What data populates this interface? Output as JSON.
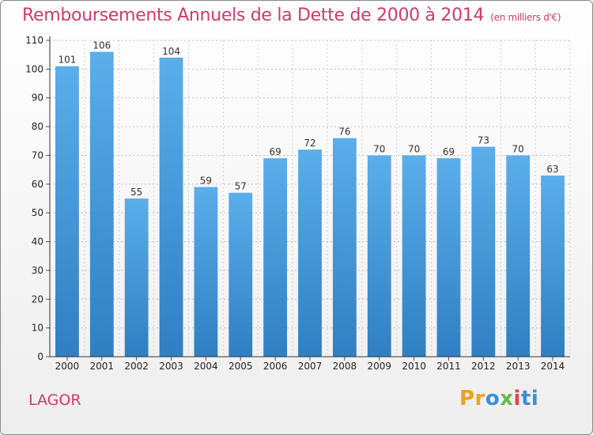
{
  "header": {
    "title": "Remboursements Annuels de la Dette de 2000 à 2014",
    "unit": "(en milliers d'€)"
  },
  "footer": {
    "commune": "LAGOR",
    "logo": "Proxiti"
  },
  "colors": {
    "title": "#d03a6a",
    "bar_top": "#5aaeea",
    "bar_bottom": "#2f7fc2"
  },
  "chart_data": {
    "type": "bar",
    "title": "Remboursements Annuels de la Dette de 2000 à 2014",
    "xlabel": "",
    "ylabel": "",
    "ylim": [
      0,
      110
    ],
    "yticks": [
      0,
      10,
      20,
      30,
      40,
      50,
      60,
      70,
      80,
      90,
      100,
      110
    ],
    "grid": true,
    "categories": [
      "2000",
      "2001",
      "2002",
      "2003",
      "2004",
      "2005",
      "2006",
      "2007",
      "2008",
      "2009",
      "2010",
      "2011",
      "2012",
      "2013",
      "2014"
    ],
    "values": [
      101,
      106,
      55,
      104,
      59,
      57,
      69,
      72,
      76,
      70,
      70,
      69,
      73,
      70,
      63
    ]
  }
}
